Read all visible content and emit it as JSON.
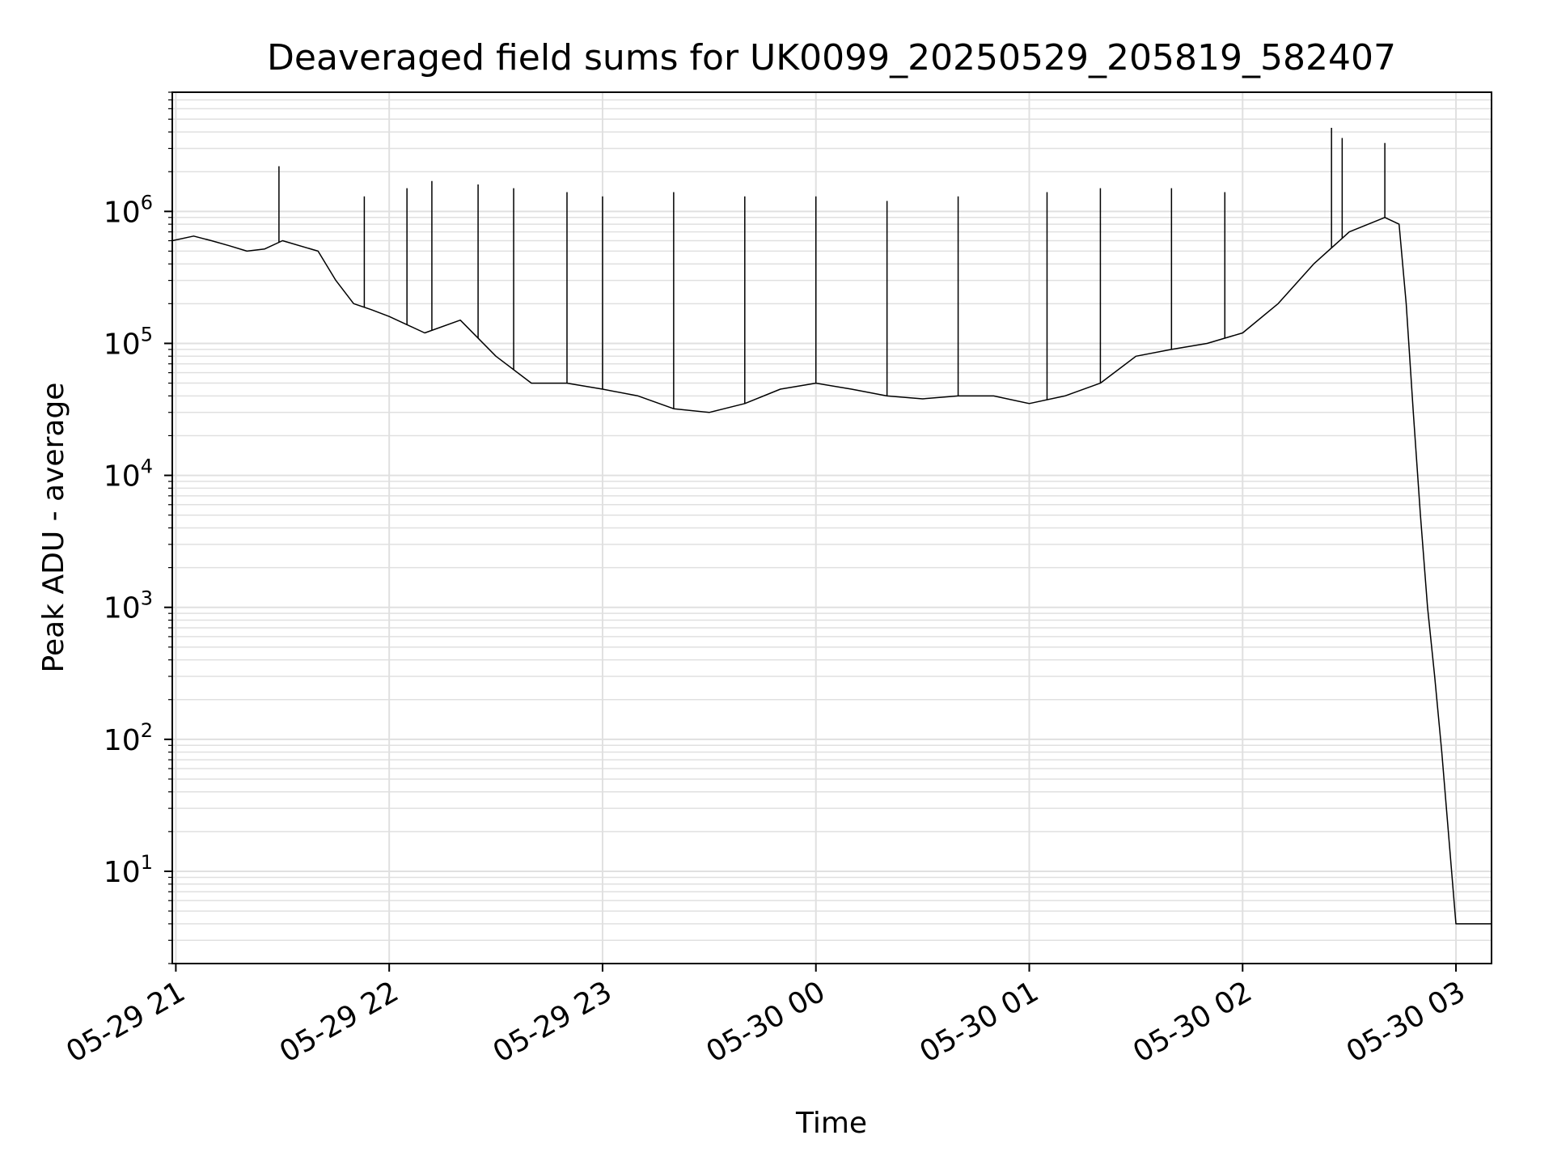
{
  "chart_data": {
    "type": "line",
    "title": "Deaveraged field sums for UK0099_20250529_205819_582407",
    "xlabel": "Time",
    "ylabel": "Peak ADU - average",
    "yscale": "log",
    "ylim": [
      2,
      8000000
    ],
    "xlim": [
      "2025-05-29 20:59",
      "2025-05-30 03:10"
    ],
    "x_tick_labels": [
      "05-29 21",
      "05-29 22",
      "05-29 23",
      "05-30 00",
      "05-30 01",
      "05-30 02",
      "05-30 03"
    ],
    "y_tick_labels": [
      {
        "base": "10",
        "exp": "1"
      },
      {
        "base": "10",
        "exp": "2"
      },
      {
        "base": "10",
        "exp": "3"
      },
      {
        "base": "10",
        "exp": "4"
      },
      {
        "base": "10",
        "exp": "5"
      },
      {
        "base": "10",
        "exp": "6"
      }
    ],
    "grid": true,
    "line_color": "#000000",
    "grid_color": "#e0e0e0",
    "series": [
      {
        "x": [
          "2025-05-29 20:59",
          "2025-05-29 21:05",
          "2025-05-29 21:10",
          "2025-05-29 21:15",
          "2025-05-29 21:20",
          "2025-05-29 21:25",
          "2025-05-29 21:30",
          "2025-05-29 21:40",
          "2025-05-29 21:45",
          "2025-05-29 21:50",
          "2025-05-29 21:55",
          "2025-05-29 22:00",
          "2025-05-29 22:10",
          "2025-05-29 22:20",
          "2025-05-29 22:30",
          "2025-05-29 22:40",
          "2025-05-29 22:50",
          "2025-05-29 23:00",
          "2025-05-29 23:10",
          "2025-05-29 23:20",
          "2025-05-29 23:30",
          "2025-05-29 23:40",
          "2025-05-29 23:50",
          "2025-05-30 00:00",
          "2025-05-30 00:10",
          "2025-05-30 00:20",
          "2025-05-30 00:30",
          "2025-05-30 00:40",
          "2025-05-30 00:50",
          "2025-05-30 01:00",
          "2025-05-30 01:10",
          "2025-05-30 01:20",
          "2025-05-30 01:30",
          "2025-05-30 01:40",
          "2025-05-30 01:50",
          "2025-05-30 02:00",
          "2025-05-30 02:10",
          "2025-05-30 02:20",
          "2025-05-30 02:30",
          "2025-05-30 02:40",
          "2025-05-30 02:44",
          "2025-05-30 02:46",
          "2025-05-30 02:48",
          "2025-05-30 02:50",
          "2025-05-30 02:52",
          "2025-05-30 02:54",
          "2025-05-30 02:56",
          "2025-05-30 03:00",
          "2025-05-30 03:05",
          "2025-05-30 03:10"
        ],
        "values": [
          600000,
          650000,
          600000,
          550000,
          500000,
          520000,
          600000,
          500000,
          300000,
          200000,
          180000,
          160000,
          120000,
          150000,
          80000,
          50000,
          50000,
          45000,
          40000,
          32000,
          30000,
          35000,
          45000,
          50000,
          45000,
          40000,
          38000,
          40000,
          40000,
          35000,
          40000,
          50000,
          80000,
          90000,
          100000,
          120000,
          200000,
          400000,
          700000,
          900000,
          800000,
          200000,
          30000,
          5000,
          1000,
          300,
          80,
          4,
          4,
          4
        ]
      }
    ],
    "spikes": [
      {
        "x": "2025-05-29 21:29",
        "y": 2200000
      },
      {
        "x": "2025-05-29 21:53",
        "y": 1300000
      },
      {
        "x": "2025-05-29 22:05",
        "y": 1500000
      },
      {
        "x": "2025-05-29 22:12",
        "y": 1700000
      },
      {
        "x": "2025-05-29 22:25",
        "y": 1600000
      },
      {
        "x": "2025-05-29 22:35",
        "y": 1500000
      },
      {
        "x": "2025-05-29 22:50",
        "y": 1400000
      },
      {
        "x": "2025-05-29 23:00",
        "y": 1300000
      },
      {
        "x": "2025-05-29 23:20",
        "y": 1400000
      },
      {
        "x": "2025-05-29 23:40",
        "y": 1300000
      },
      {
        "x": "2025-05-30 00:00",
        "y": 1300000
      },
      {
        "x": "2025-05-30 00:20",
        "y": 1200000
      },
      {
        "x": "2025-05-30 00:40",
        "y": 1300000
      },
      {
        "x": "2025-05-30 01:05",
        "y": 1400000
      },
      {
        "x": "2025-05-30 01:20",
        "y": 1500000
      },
      {
        "x": "2025-05-30 01:40",
        "y": 1500000
      },
      {
        "x": "2025-05-30 01:55",
        "y": 1400000
      },
      {
        "x": "2025-05-30 02:25",
        "y": 4300000
      },
      {
        "x": "2025-05-30 02:28",
        "y": 3600000
      },
      {
        "x": "2025-05-30 02:40",
        "y": 3300000
      }
    ]
  }
}
